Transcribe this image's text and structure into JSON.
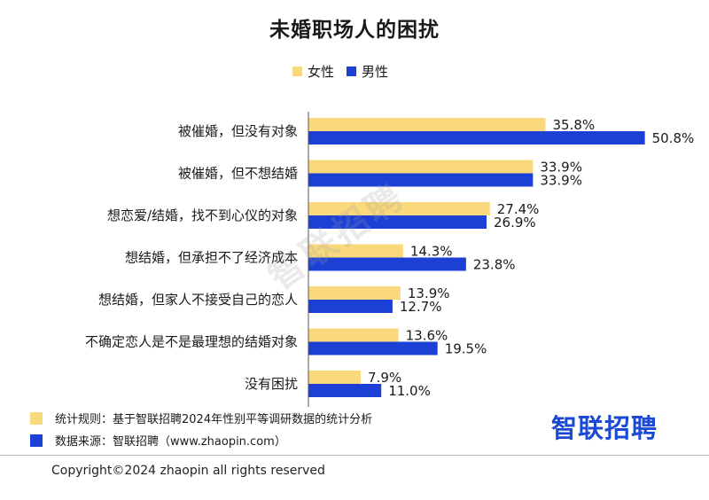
{
  "chart_data": {
    "type": "bar",
    "orientation": "horizontal",
    "title": "未婚职场人的困扰",
    "categories": [
      "被催婚，但没有对象",
      "被催婚，但不想结婚",
      "想恋爱/结婚，找不到心仪的对象",
      "想结婚，但承担不了经济成本",
      "想结婚，但家人不接受自己的恋人",
      "不确定恋人是不是最理想的结婚对象",
      "没有困扰"
    ],
    "series": [
      {
        "name": "女性",
        "color": "#f9d97c",
        "values": [
          35.8,
          33.9,
          27.4,
          14.3,
          13.9,
          13.6,
          7.9
        ],
        "labels": [
          "35.8%",
          "33.9%",
          "27.4%",
          "14.3%",
          "13.9%",
          "13.6%",
          "7.9%"
        ]
      },
      {
        "name": "男性",
        "color": "#1c3fd6",
        "values": [
          50.8,
          33.9,
          26.9,
          23.8,
          12.7,
          19.5,
          11.0
        ],
        "labels": [
          "50.8%",
          "33.9%",
          "26.9%",
          "23.8%",
          "12.7%",
          "19.5%",
          "11.0%"
        ]
      }
    ],
    "xlim": [
      0,
      55
    ],
    "grid": false,
    "legend_position": "top"
  },
  "footer": {
    "note_rule": "统计规则：基于智联招聘2024年性别平等调研数据的统计分析",
    "note_source": "数据来源：智联招聘（www.zhaopin.com）",
    "brand": "智联招聘",
    "watermark": "智联招聘",
    "copyright": "Copyright©2024 zhaopin all rights reserved"
  }
}
